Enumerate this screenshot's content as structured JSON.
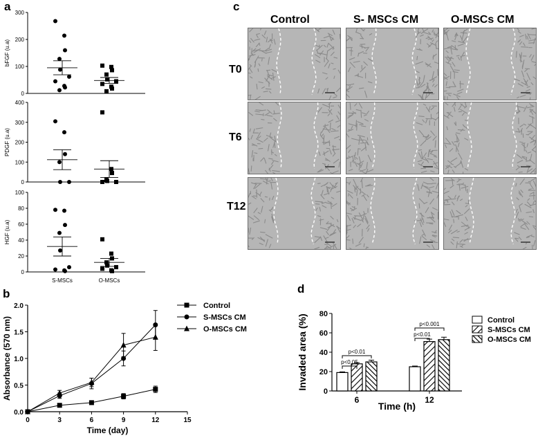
{
  "panels": {
    "a": "a",
    "b": "b",
    "c": "c",
    "d": "d"
  },
  "panel_a": {
    "group_labels": [
      "S-MSCs",
      "O-MSCs"
    ],
    "subplots": [
      {
        "ylabel": "bFGF (u.a)",
        "ylim": [
          0,
          300
        ],
        "yticks": [
          "0",
          "100",
          "200",
          "300"
        ],
        "groups": [
          {
            "name": "S-MSCs",
            "marker": "circle",
            "points": [
              268,
              214,
              160,
              128,
              88,
              62,
              45,
              28,
              22,
              12
            ],
            "mean": 95,
            "sem": 26
          },
          {
            "name": "O-MSCs",
            "marker": "square",
            "points": [
              103,
              98,
              86,
              70,
              52,
              45,
              35,
              25,
              18,
              8
            ],
            "mean": 48,
            "sem": 11
          }
        ]
      },
      {
        "ylabel": "PDGF (u.a)",
        "ylim": [
          0,
          400
        ],
        "yticks": [
          "0",
          "100",
          "200",
          "300",
          "400"
        ],
        "groups": [
          {
            "name": "S-MSCs",
            "marker": "circle",
            "points": [
              305,
              250,
              140,
              100,
              0,
              0
            ],
            "mean": 112,
            "sem": 50
          },
          {
            "name": "O-MSCs",
            "marker": "square",
            "points": [
              350,
              65,
              45,
              12,
              5,
              0,
              0
            ],
            "mean": 65,
            "sem": 42
          }
        ]
      },
      {
        "ylabel": "HGF (u.a)",
        "ylim": [
          0,
          100
        ],
        "yticks": [
          "0",
          "20",
          "40",
          "60",
          "80",
          "100"
        ],
        "groups": [
          {
            "name": "S-MSCs",
            "marker": "circle",
            "points": [
              78,
              77,
              59,
              49,
              27,
              6,
              3,
              2,
              1
            ],
            "mean": 32,
            "sem": 12
          },
          {
            "name": "O-MSCs",
            "marker": "square",
            "points": [
              41,
              23,
              17,
              12,
              8,
              6,
              4,
              2,
              1
            ],
            "mean": 12,
            "sem": 5
          }
        ]
      }
    ]
  },
  "chart_data": [
    {
      "type": "line",
      "panel": "b",
      "xlabel": "Time (day)",
      "ylabel": "Absorbance (570 nm)",
      "xlim": [
        0,
        15
      ],
      "ylim": [
        0,
        2.0
      ],
      "xticks": [
        0,
        3,
        6,
        9,
        12,
        15
      ],
      "yticks": [
        "0.0",
        "0.5",
        "1.0",
        "1.5",
        "2.0"
      ],
      "x": [
        0,
        3,
        6,
        9,
        12
      ],
      "legend_position": "top-right",
      "series": [
        {
          "name": "Control",
          "marker": "square",
          "values": [
            0.0,
            0.12,
            0.17,
            0.29,
            0.42
          ],
          "errors": [
            0,
            0.02,
            0.03,
            0.05,
            0.06
          ]
        },
        {
          "name": "S-MSCs CM",
          "marker": "circle",
          "values": [
            0.0,
            0.3,
            0.53,
            1.0,
            1.63
          ],
          "errors": [
            0,
            0.05,
            0.1,
            0.14,
            0.27
          ]
        },
        {
          "name": "O-MSCs CM",
          "marker": "triangle",
          "values": [
            0.0,
            0.35,
            0.55,
            1.25,
            1.4
          ],
          "errors": [
            0,
            0.05,
            0.08,
            0.22,
            0.25
          ]
        }
      ]
    },
    {
      "type": "bar",
      "panel": "d",
      "xlabel": "Time (h)",
      "ylabel": "Invaded area (%)",
      "ylim": [
        0,
        80
      ],
      "yticks": [
        "0",
        "20",
        "40",
        "60",
        "80"
      ],
      "categories": [
        "6",
        "12"
      ],
      "legend_position": "top-right",
      "series": [
        {
          "name": "Control",
          "fill": "white",
          "values": [
            19,
            25
          ],
          "errors": [
            0.7,
            0.7
          ]
        },
        {
          "name": "S-MSCs  CM",
          "fill": "hatch",
          "values": [
            28,
            51
          ],
          "errors": [
            1.2,
            2.5
          ]
        },
        {
          "name": "O-MSCs  CM",
          "fill": "hatch-dense",
          "values": [
            30,
            53
          ],
          "errors": [
            1.8,
            2.5
          ]
        }
      ],
      "annotations": [
        {
          "text": "p<0.05",
          "category": "6",
          "from": 0,
          "to": 1
        },
        {
          "text": "p<0.01",
          "category": "6",
          "from": 0,
          "to": 2
        },
        {
          "text": "p<0.01",
          "category": "12",
          "from": 0,
          "to": 1
        },
        {
          "text": "p<0.001",
          "category": "12",
          "from": 0,
          "to": 2
        }
      ]
    }
  ],
  "panel_c": {
    "columns": [
      "Control",
      "S- MSCs CM",
      "O-MSCs CM"
    ],
    "rows": [
      "T0",
      "T6",
      "T12"
    ],
    "image_fill": "#b6b6b6"
  }
}
